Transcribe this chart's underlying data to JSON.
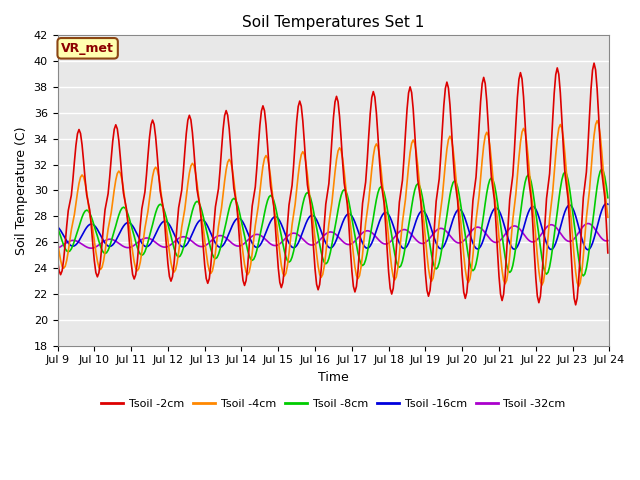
{
  "title": "Soil Temperatures Set 1",
  "xlabel": "Time",
  "ylabel": "Soil Temperature (C)",
  "ylim": [
    18,
    42
  ],
  "yticks": [
    18,
    20,
    22,
    24,
    26,
    28,
    30,
    32,
    34,
    36,
    38,
    40,
    42
  ],
  "fig_background": "#ffffff",
  "plot_background": "#e8e8e8",
  "annotation_text": "VR_met",
  "annotation_box_color": "#ffffb0",
  "annotation_border_color": "#8b4513",
  "series": {
    "Tsoil -2cm": {
      "color": "#dd0000",
      "lw": 1.2
    },
    "Tsoil -4cm": {
      "color": "#ff8800",
      "lw": 1.2
    },
    "Tsoil -8cm": {
      "color": "#00cc00",
      "lw": 1.2
    },
    "Tsoil -16cm": {
      "color": "#0000dd",
      "lw": 1.2
    },
    "Tsoil -32cm": {
      "color": "#aa00cc",
      "lw": 1.2
    }
  },
  "tick_days": [
    9,
    10,
    11,
    12,
    13,
    14,
    15,
    16,
    17,
    18,
    19,
    20,
    21,
    22,
    23,
    24
  ]
}
